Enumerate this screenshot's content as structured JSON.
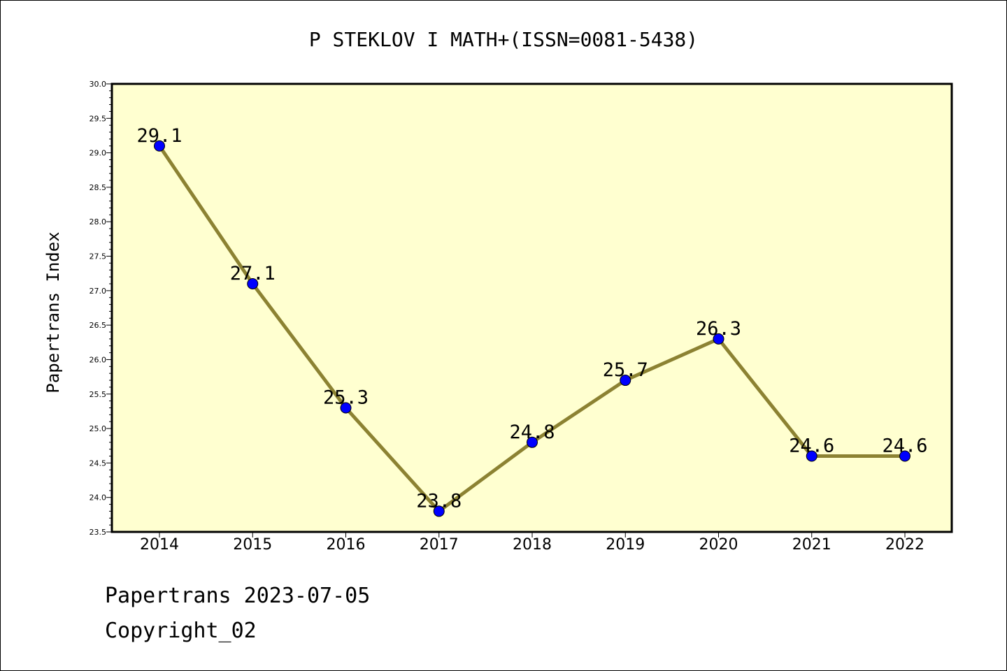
{
  "chart_data": {
    "type": "line",
    "title": "P STEKLOV I MATH+(ISSN=0081-5438)",
    "xlabel": "",
    "ylabel": "Papertrans Index",
    "categories": [
      "2014",
      "2015",
      "2016",
      "2017",
      "2018",
      "2019",
      "2020",
      "2021",
      "2022"
    ],
    "series": [
      {
        "values": [
          29.1,
          27.1,
          25.3,
          23.8,
          24.8,
          25.7,
          26.3,
          24.6,
          24.6
        ],
        "data_labels": [
          "29.1",
          "27.1",
          "25.3",
          "23.8",
          "24.8",
          "25.7",
          "26.3",
          "24.6",
          "24.6"
        ]
      }
    ],
    "ylim": [
      23.5,
      30.0
    ],
    "yticks": [
      "23.5",
      "24.0",
      "24.5",
      "25.0",
      "25.5",
      "26.0",
      "26.5",
      "27.0",
      "27.5",
      "28.0",
      "28.5",
      "29.0",
      "29.5",
      "30.0"
    ],
    "grid": false,
    "colors": {
      "plot_background": "#ffffd0",
      "line": "#8c8232",
      "marker": "#0000ff"
    }
  },
  "footer": {
    "line1": "Papertrans 2023-07-05",
    "line2": "Copyright_02"
  }
}
